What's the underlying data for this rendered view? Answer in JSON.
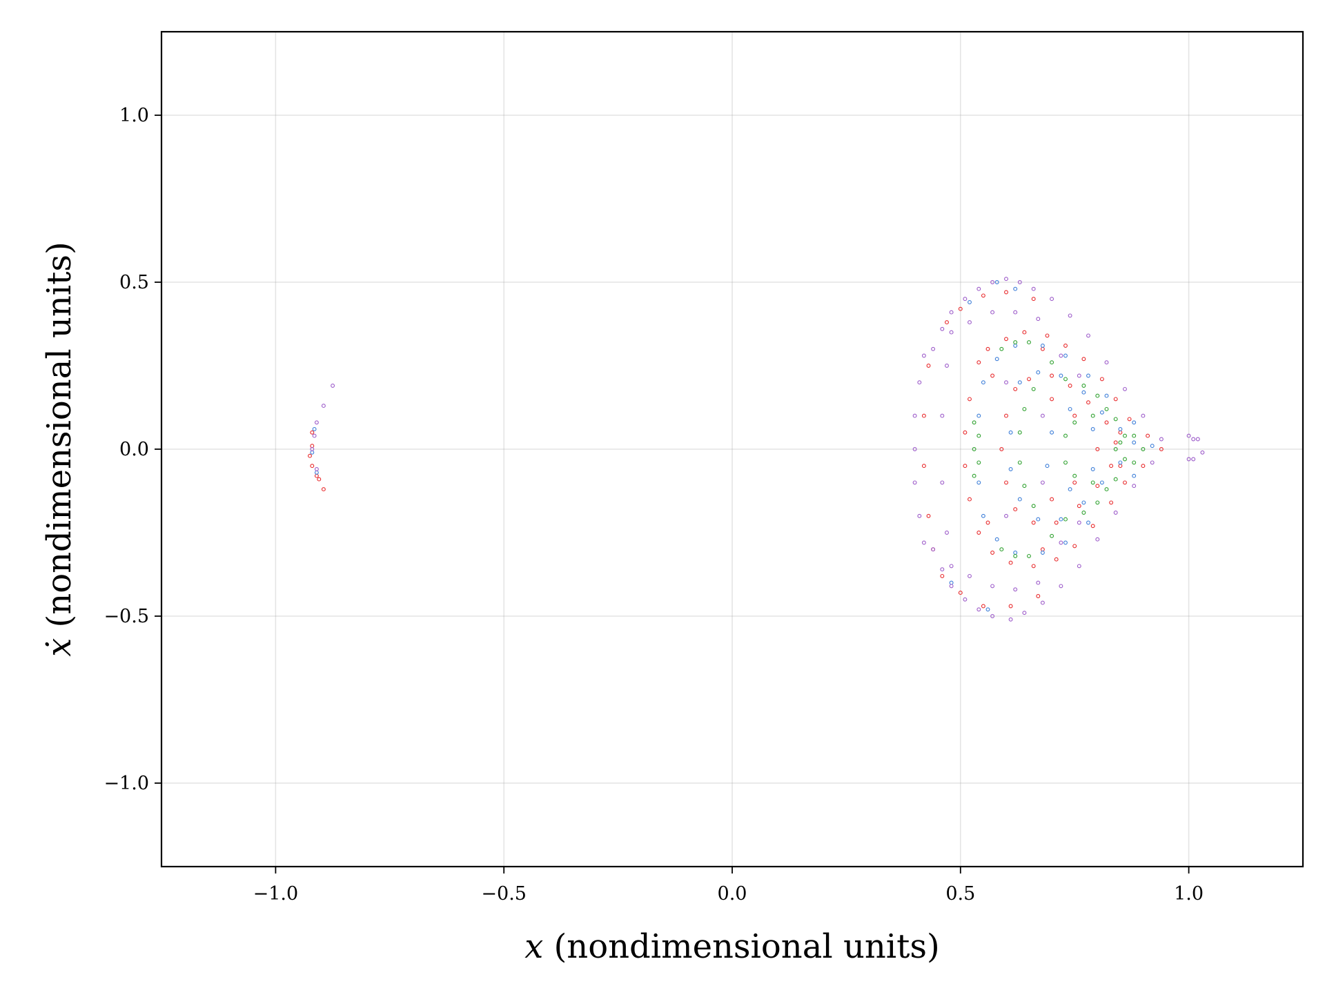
{
  "chart_data": {
    "type": "scatter",
    "title": "",
    "xlabel_var": "x",
    "xlabel_units": " (nondimensional units)",
    "ylabel_var": "ẋ",
    "ylabel_units": " (nondimensional units)",
    "xlim": [
      -1.25,
      1.25
    ],
    "ylim": [
      -1.25,
      1.25
    ],
    "grid": true,
    "legend": "none",
    "x_ticks": [
      -1.0,
      -0.5,
      0.0,
      0.5,
      1.0
    ],
    "x_tick_labels": [
      "−1.0",
      "−0.5",
      "0.0",
      "0.5",
      "1.0"
    ],
    "y_ticks": [
      -1.0,
      -0.5,
      0.0,
      0.5,
      1.0
    ],
    "y_tick_labels": [
      "−1.0",
      "−0.5",
      "0.0",
      "0.5",
      "1.0"
    ],
    "series": [
      {
        "color": "#e8282a",
        "points": [
          [
            -0.92,
            0.05
          ],
          [
            -0.92,
            0.01
          ],
          [
            -0.925,
            -0.02
          ],
          [
            -0.92,
            -0.05
          ],
          [
            -0.91,
            -0.08
          ],
          [
            -0.905,
            -0.09
          ],
          [
            -0.895,
            -0.12
          ],
          [
            0.54,
            0.26
          ],
          [
            0.56,
            0.3
          ],
          [
            0.6,
            0.33
          ],
          [
            0.64,
            0.35
          ],
          [
            0.69,
            0.34
          ],
          [
            0.73,
            0.31
          ],
          [
            0.77,
            0.27
          ],
          [
            0.81,
            0.21
          ],
          [
            0.84,
            0.15
          ],
          [
            0.87,
            0.09
          ],
          [
            0.91,
            0.04
          ],
          [
            0.94,
            0.0
          ],
          [
            0.52,
            0.15
          ],
          [
            0.51,
            0.05
          ],
          [
            0.51,
            -0.05
          ],
          [
            0.52,
            -0.15
          ],
          [
            0.54,
            -0.25
          ],
          [
            0.57,
            -0.31
          ],
          [
            0.61,
            -0.34
          ],
          [
            0.66,
            -0.35
          ],
          [
            0.71,
            -0.33
          ],
          [
            0.75,
            -0.29
          ],
          [
            0.79,
            -0.23
          ],
          [
            0.83,
            -0.16
          ],
          [
            0.86,
            -0.1
          ],
          [
            0.9,
            -0.05
          ],
          [
            0.62,
            0.18
          ],
          [
            0.65,
            0.21
          ],
          [
            0.7,
            0.22
          ],
          [
            0.74,
            0.19
          ],
          [
            0.78,
            0.14
          ],
          [
            0.82,
            0.08
          ],
          [
            0.84,
            0.02
          ],
          [
            0.6,
            0.1
          ],
          [
            0.59,
            0.0
          ],
          [
            0.6,
            -0.1
          ],
          [
            0.62,
            -0.18
          ],
          [
            0.66,
            -0.22
          ],
          [
            0.71,
            -0.22
          ],
          [
            0.76,
            -0.17
          ],
          [
            0.8,
            -0.11
          ],
          [
            0.83,
            -0.05
          ],
          [
            0.47,
            0.38
          ],
          [
            0.5,
            0.42
          ],
          [
            0.55,
            0.46
          ],
          [
            0.6,
            0.47
          ],
          [
            0.66,
            0.45
          ],
          [
            0.46,
            -0.38
          ],
          [
            0.5,
            -0.43
          ],
          [
            0.55,
            -0.47
          ],
          [
            0.61,
            -0.47
          ],
          [
            0.67,
            -0.44
          ],
          [
            0.43,
            0.25
          ],
          [
            0.42,
            0.1
          ],
          [
            0.42,
            -0.05
          ],
          [
            0.43,
            -0.2
          ],
          [
            0.44,
            -0.3
          ],
          [
            0.57,
            0.22
          ],
          [
            0.56,
            -0.22
          ],
          [
            0.68,
            0.3
          ],
          [
            0.68,
            -0.3
          ],
          [
            0.8,
            0.0
          ],
          [
            0.85,
            0.05
          ],
          [
            0.85,
            -0.05
          ],
          [
            0.75,
            0.1
          ],
          [
            0.75,
            -0.1
          ],
          [
            0.7,
            0.15
          ],
          [
            0.7,
            -0.15
          ]
        ]
      },
      {
        "color": "#3b7dd8",
        "points": [
          [
            -0.915,
            0.06
          ],
          [
            -0.92,
            -0.01
          ],
          [
            -0.91,
            -0.07
          ],
          [
            0.63,
            0.2
          ],
          [
            0.67,
            0.23
          ],
          [
            0.72,
            0.22
          ],
          [
            0.77,
            0.17
          ],
          [
            0.81,
            0.11
          ],
          [
            0.85,
            0.06
          ],
          [
            0.88,
            0.02
          ],
          [
            0.61,
            0.05
          ],
          [
            0.61,
            -0.06
          ],
          [
            0.63,
            -0.15
          ],
          [
            0.67,
            -0.21
          ],
          [
            0.72,
            -0.21
          ],
          [
            0.77,
            -0.16
          ],
          [
            0.81,
            -0.1
          ],
          [
            0.85,
            -0.04
          ],
          [
            0.55,
            0.2
          ],
          [
            0.54,
            0.1
          ],
          [
            0.54,
            -0.1
          ],
          [
            0.55,
            -0.2
          ],
          [
            0.58,
            -0.27
          ],
          [
            0.62,
            -0.31
          ],
          [
            0.68,
            -0.31
          ],
          [
            0.73,
            -0.28
          ],
          [
            0.78,
            -0.22
          ],
          [
            0.58,
            0.27
          ],
          [
            0.62,
            0.31
          ],
          [
            0.68,
            0.31
          ],
          [
            0.73,
            0.28
          ],
          [
            0.78,
            0.22
          ],
          [
            0.82,
            0.16
          ],
          [
            0.7,
            0.05
          ],
          [
            0.69,
            -0.05
          ],
          [
            0.74,
            0.12
          ],
          [
            0.74,
            -0.12
          ],
          [
            0.79,
            0.06
          ],
          [
            0.79,
            -0.06
          ],
          [
            0.88,
            0.08
          ],
          [
            0.88,
            -0.08
          ],
          [
            0.92,
            0.01
          ],
          [
            0.52,
            0.44
          ],
          [
            0.58,
            0.5
          ],
          [
            0.62,
            0.48
          ],
          [
            0.48,
            -0.4
          ],
          [
            0.56,
            -0.48
          ]
        ]
      },
      {
        "color": "#2ca02c",
        "points": [
          [
            0.53,
            0.08
          ],
          [
            0.53,
            0.0
          ],
          [
            0.53,
            -0.08
          ],
          [
            0.54,
            0.04
          ],
          [
            0.54,
            -0.04
          ],
          [
            0.59,
            0.3
          ],
          [
            0.62,
            0.32
          ],
          [
            0.65,
            0.32
          ],
          [
            0.59,
            -0.3
          ],
          [
            0.62,
            -0.32
          ],
          [
            0.65,
            -0.32
          ],
          [
            0.73,
            0.21
          ],
          [
            0.77,
            0.19
          ],
          [
            0.8,
            0.16
          ],
          [
            0.73,
            -0.21
          ],
          [
            0.77,
            -0.19
          ],
          [
            0.8,
            -0.16
          ],
          [
            0.66,
            0.18
          ],
          [
            0.64,
            0.12
          ],
          [
            0.63,
            0.05
          ],
          [
            0.63,
            -0.04
          ],
          [
            0.64,
            -0.11
          ],
          [
            0.66,
            -0.17
          ],
          [
            0.75,
            0.08
          ],
          [
            0.73,
            0.04
          ],
          [
            0.73,
            -0.04
          ],
          [
            0.75,
            -0.08
          ],
          [
            0.79,
            -0.1
          ],
          [
            0.79,
            0.1
          ],
          [
            0.85,
            0.02
          ],
          [
            0.86,
            0.04
          ],
          [
            0.88,
            0.04
          ],
          [
            0.86,
            -0.03
          ],
          [
            0.88,
            -0.04
          ],
          [
            0.9,
            0.0
          ],
          [
            0.84,
            0.0
          ],
          [
            0.82,
            0.12
          ],
          [
            0.84,
            0.09
          ],
          [
            0.82,
            -0.12
          ],
          [
            0.84,
            -0.09
          ],
          [
            0.7,
            0.26
          ],
          [
            0.7,
            -0.26
          ]
        ]
      },
      {
        "color": "#9b59c9",
        "points": [
          [
            -0.91,
            0.08
          ],
          [
            -0.895,
            0.13
          ],
          [
            -0.875,
            0.19
          ],
          [
            -0.915,
            0.04
          ],
          [
            -0.92,
            0.0
          ],
          [
            -0.91,
            -0.06
          ],
          [
            0.44,
            0.3
          ],
          [
            0.46,
            0.36
          ],
          [
            0.48,
            0.41
          ],
          [
            0.51,
            0.45
          ],
          [
            0.54,
            0.48
          ],
          [
            0.57,
            0.5
          ],
          [
            0.6,
            0.51
          ],
          [
            0.63,
            0.5
          ],
          [
            0.66,
            0.48
          ],
          [
            0.7,
            0.45
          ],
          [
            0.74,
            0.4
          ],
          [
            0.78,
            0.34
          ],
          [
            0.82,
            0.26
          ],
          [
            0.86,
            0.18
          ],
          [
            0.9,
            0.1
          ],
          [
            0.94,
            0.03
          ],
          [
            0.44,
            -0.3
          ],
          [
            0.46,
            -0.36
          ],
          [
            0.48,
            -0.41
          ],
          [
            0.51,
            -0.45
          ],
          [
            0.54,
            -0.48
          ],
          [
            0.57,
            -0.5
          ],
          [
            0.61,
            -0.51
          ],
          [
            0.64,
            -0.49
          ],
          [
            0.68,
            -0.46
          ],
          [
            0.72,
            -0.41
          ],
          [
            0.76,
            -0.35
          ],
          [
            0.8,
            -0.27
          ],
          [
            0.84,
            -0.19
          ],
          [
            0.88,
            -0.11
          ],
          [
            0.92,
            -0.04
          ],
          [
            0.41,
            0.2
          ],
          [
            0.4,
            0.1
          ],
          [
            0.4,
            0.0
          ],
          [
            0.4,
            -0.1
          ],
          [
            0.41,
            -0.2
          ],
          [
            0.42,
            0.28
          ],
          [
            0.42,
            -0.28
          ],
          [
            0.48,
            0.35
          ],
          [
            0.47,
            0.25
          ],
          [
            0.46,
            0.1
          ],
          [
            0.46,
            -0.1
          ],
          [
            0.47,
            -0.25
          ],
          [
            0.48,
            -0.35
          ],
          [
            0.52,
            0.38
          ],
          [
            0.57,
            0.41
          ],
          [
            0.62,
            0.41
          ],
          [
            0.67,
            0.39
          ],
          [
            0.52,
            -0.38
          ],
          [
            0.57,
            -0.41
          ],
          [
            0.62,
            -0.42
          ],
          [
            0.67,
            -0.4
          ],
          [
            1.0,
            0.04
          ],
          [
            1.01,
            0.03
          ],
          [
            1.02,
            0.03
          ],
          [
            1.03,
            -0.01
          ],
          [
            1.01,
            -0.03
          ],
          [
            1.0,
            -0.03
          ],
          [
            0.6,
            0.2
          ],
          [
            0.6,
            -0.2
          ],
          [
            0.72,
            0.28
          ],
          [
            0.72,
            -0.28
          ],
          [
            0.68,
            0.1
          ],
          [
            0.68,
            -0.1
          ],
          [
            0.76,
            0.22
          ],
          [
            0.76,
            -0.22
          ]
        ]
      }
    ]
  }
}
